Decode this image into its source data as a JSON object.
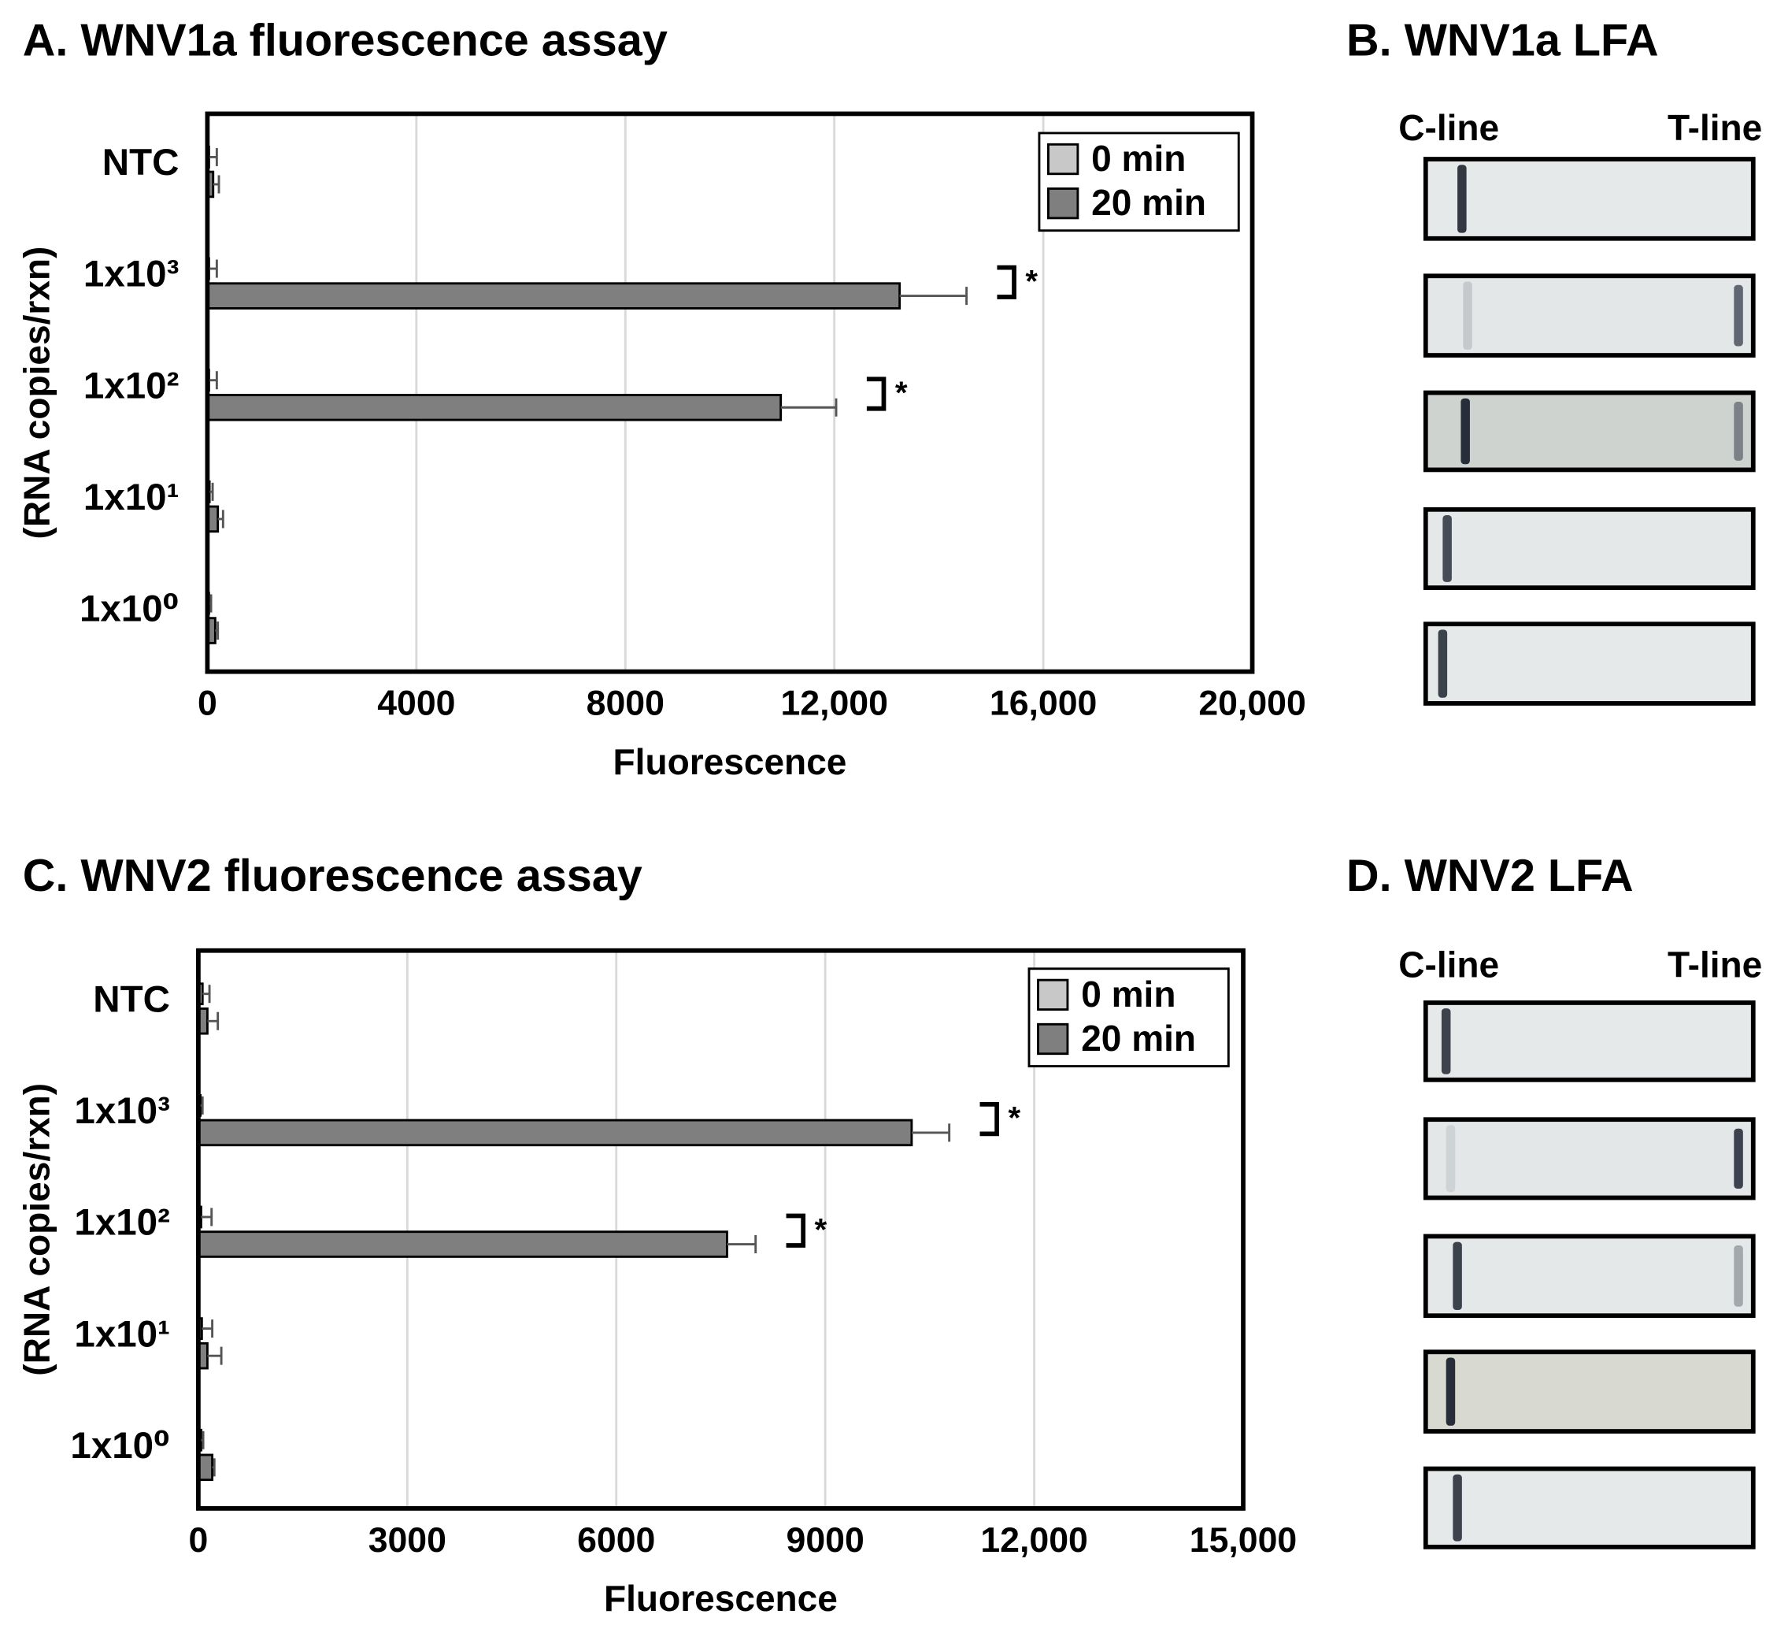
{
  "chart_data": [
    {
      "type": "bar",
      "orientation": "horizontal",
      "title": "A. WNV1a fluorescence assay",
      "xlabel": "Fluorescence",
      "ylabel": "(RNA copies/rxn)",
      "categories": [
        "NTC",
        "1x10³",
        "1x10²",
        "1x10¹",
        "1x10⁰"
      ],
      "series": [
        {
          "name": "0 min",
          "color": "#c8c8c8",
          "values": [
            30,
            30,
            30,
            40,
            30
          ],
          "errors": [
            150,
            150,
            150,
            60,
            40
          ]
        },
        {
          "name": "20 min",
          "color": "#7f7f7f",
          "values": [
            110,
            13250,
            10975,
            200,
            150
          ],
          "errors": [
            110,
            1280,
            1060,
            100,
            50
          ]
        }
      ],
      "xlim": [
        0,
        20000
      ],
      "xticks": [
        0,
        4000,
        8000,
        {
          "value": 12000,
          "label": "12,000"
        },
        {
          "value": 16000,
          "label": "16,000"
        },
        {
          "value": 20000,
          "label": "20,000"
        }
      ],
      "grid": true,
      "legend": "upper right",
      "annotations": [
        {
          "category": "1x10³",
          "text": "*"
        },
        {
          "category": "1x10²",
          "text": "*"
        }
      ]
    },
    {
      "type": "bar",
      "orientation": "horizontal",
      "title": "C. WNV2 fluorescence assay",
      "xlabel": "Fluorescence",
      "ylabel": "(RNA copies/rxn)",
      "categories": [
        "NTC",
        "1x10³",
        "1x10²",
        "1x10¹",
        "1x10⁰"
      ],
      "series": [
        {
          "name": "0 min",
          "color": "#c8c8c8",
          "values": [
            60,
            30,
            40,
            50,
            40
          ],
          "errors": [
            100,
            30,
            150,
            150,
            30
          ]
        },
        {
          "name": "20 min",
          "color": "#7f7f7f",
          "values": [
            130,
            10240,
            7590,
            130,
            200
          ],
          "errors": [
            150,
            540,
            410,
            200,
            30
          ]
        }
      ],
      "xlim": [
        0,
        15000
      ],
      "xticks": [
        0,
        3000,
        6000,
        9000,
        {
          "value": 12000,
          "label": "12,000"
        },
        {
          "value": 15000,
          "label": "15,000"
        }
      ],
      "grid": true,
      "legend": "upper right",
      "annotations": [
        {
          "category": "1x10³",
          "text": "*"
        },
        {
          "category": "1x10²",
          "text": "*"
        }
      ]
    }
  ],
  "lfa_panels": [
    {
      "title": "B. WNV1a LFA",
      "left_label": "C-line",
      "right_label": "T-line"
    },
    {
      "title": "D. WNV2 LFA",
      "left_label": "C-line",
      "right_label": "T-line"
    }
  ]
}
